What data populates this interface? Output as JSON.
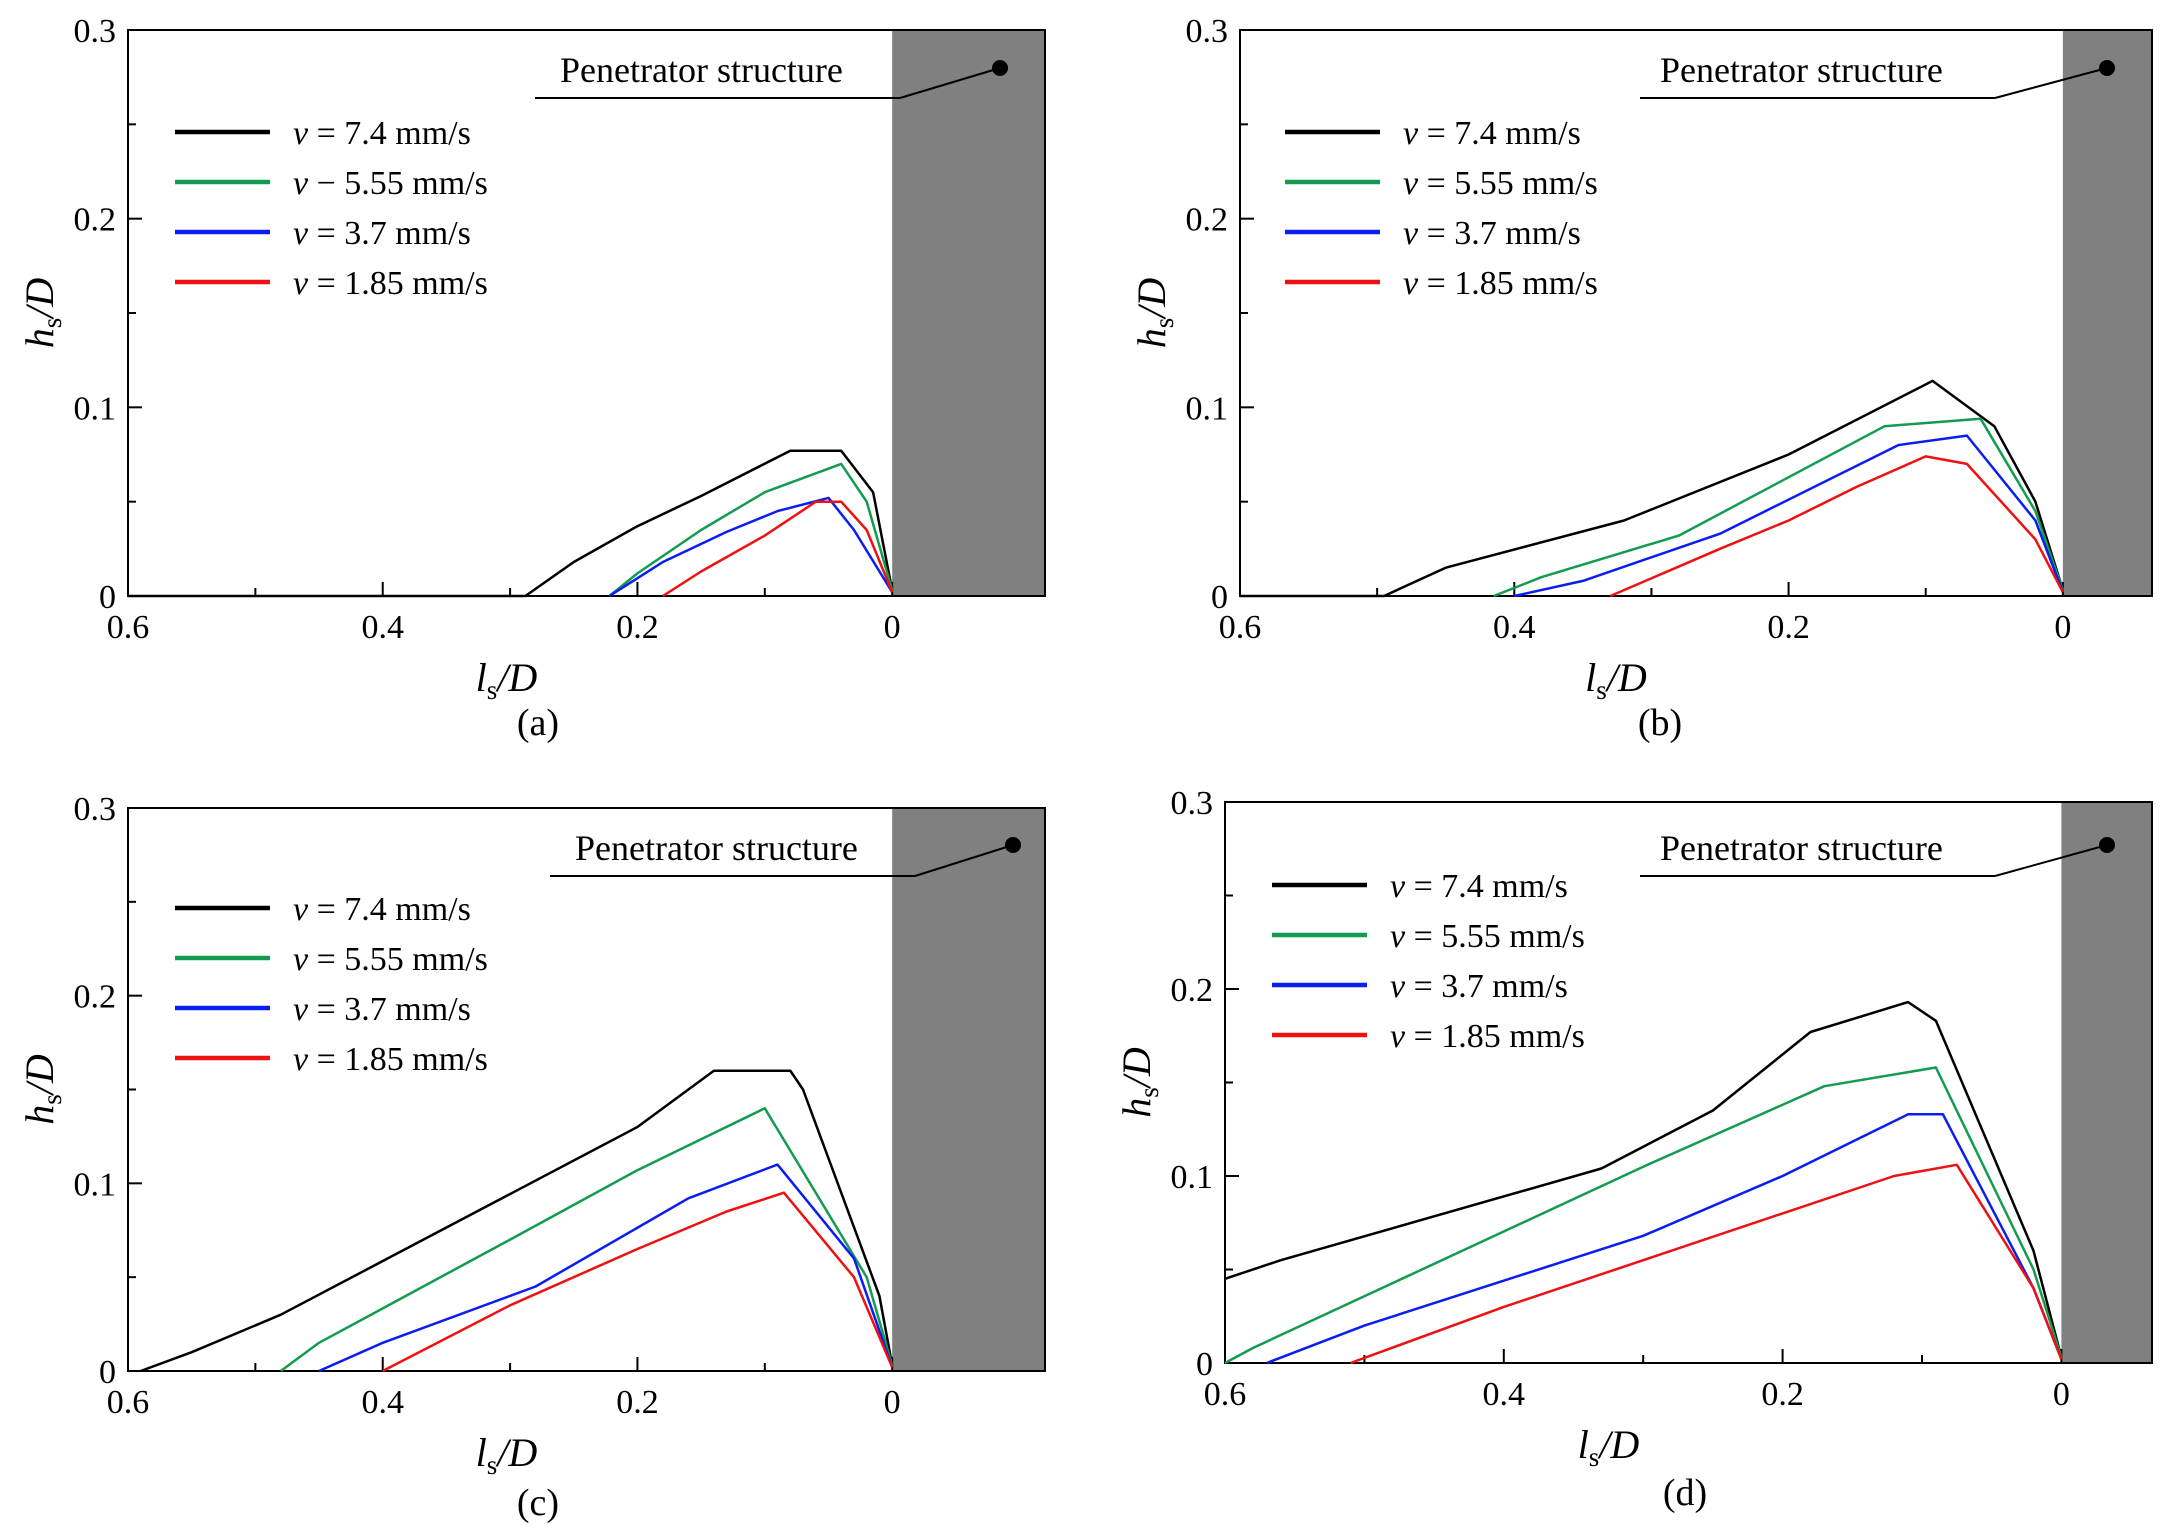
{
  "figure": {
    "penetrator_label": "Penetrator structure",
    "x_axis": {
      "main": "l",
      "sub": "s",
      "suffix": "/D"
    },
    "y_axis": {
      "main": "h",
      "sub": "s",
      "suffix": "/D"
    },
    "colors": {
      "v7_4": "#000000",
      "v5_55": "#139b4f",
      "v3_7": "#0a1ef0",
      "v1_85": "#ee1111",
      "structure": "#808080"
    }
  },
  "chart_data": [
    {
      "panel": "(a)",
      "type": "line",
      "xlabel": "ls/D",
      "ylabel": "hs/D",
      "xlim": [
        0.6,
        -0.12
      ],
      "ylim": [
        0,
        0.3
      ],
      "xticks": [
        "0.6",
        "0.4",
        "0.2",
        "0"
      ],
      "yticks": [
        "0",
        "0.1",
        "0.2",
        "0.3"
      ],
      "series": [
        {
          "name": "v = 7.4 mm/s",
          "legend_sym": "v",
          "legend_rest": " = 7.4 mm/s",
          "color": "#000000",
          "x": [
            0.6,
            0.288,
            0.25,
            0.2,
            0.15,
            0.08,
            0.04,
            0.015,
            0.0
          ],
          "y": [
            0,
            0,
            0.018,
            0.037,
            0.053,
            0.077,
            0.077,
            0.055,
            0.003
          ]
        },
        {
          "name": "v − 5.55 mm/s",
          "legend_sym": "v",
          "legend_rest": " − 5.55 mm/s",
          "color": "#139b4f",
          "x": [
            0.222,
            0.2,
            0.15,
            0.1,
            0.04,
            0.02,
            0.0
          ],
          "y": [
            0,
            0.012,
            0.035,
            0.055,
            0.07,
            0.05,
            0.003
          ]
        },
        {
          "name": "v = 3.7 mm/s",
          "legend_sym": "v",
          "legend_rest": " = 3.7 mm/s",
          "color": "#0a1ef0",
          "x": [
            0.222,
            0.18,
            0.13,
            0.09,
            0.05,
            0.03,
            0.0
          ],
          "y": [
            0,
            0.018,
            0.034,
            0.045,
            0.052,
            0.035,
            0.002
          ]
        },
        {
          "name": "v = 1.85 mm/s",
          "legend_sym": "v",
          "legend_rest": " = 1.85 mm/s",
          "color": "#ee1111",
          "x": [
            0.18,
            0.15,
            0.1,
            0.06,
            0.04,
            0.02,
            0.0
          ],
          "y": [
            0,
            0.013,
            0.032,
            0.05,
            0.05,
            0.035,
            0.002
          ]
        }
      ]
    },
    {
      "panel": "(b)",
      "type": "line",
      "xlabel": "ls/D",
      "ylabel": "hs/D",
      "xlim": [
        0.6,
        -0.065
      ],
      "ylim": [
        0,
        0.3
      ],
      "xticks": [
        "0.6",
        "0.4",
        "0.2",
        "0"
      ],
      "yticks": [
        "0",
        "0.1",
        "0.2",
        "0.3"
      ],
      "series": [
        {
          "name": "v = 7.4 mm/s",
          "legend_sym": "v",
          "legend_rest": " = 7.4 mm/s",
          "color": "#000000",
          "x": [
            0.6,
            0.495,
            0.45,
            0.32,
            0.2,
            0.095,
            0.05,
            0.02,
            0.0
          ],
          "y": [
            0,
            0,
            0.015,
            0.04,
            0.075,
            0.114,
            0.09,
            0.05,
            0.003
          ]
        },
        {
          "name": "v = 5.55 mm/s",
          "legend_sym": "v",
          "legend_rest": " = 5.55 mm/s",
          "color": "#139b4f",
          "x": [
            0.415,
            0.38,
            0.28,
            0.13,
            0.06,
            0.02,
            0.0
          ],
          "y": [
            0,
            0.01,
            0.032,
            0.09,
            0.094,
            0.045,
            0.003
          ]
        },
        {
          "name": "v = 3.7 mm/s",
          "legend_sym": "v",
          "legend_rest": " = 3.7 mm/s",
          "color": "#0a1ef0",
          "x": [
            0.4,
            0.35,
            0.25,
            0.12,
            0.07,
            0.02,
            0.0
          ],
          "y": [
            0,
            0.008,
            0.033,
            0.08,
            0.085,
            0.04,
            0.002
          ]
        },
        {
          "name": "v = 1.85 mm/s",
          "legend_sym": "v",
          "legend_rest": " = 1.85 mm/s",
          "color": "#ee1111",
          "x": [
            0.33,
            0.25,
            0.2,
            0.15,
            0.1,
            0.07,
            0.02,
            0.0
          ],
          "y": [
            0,
            0.025,
            0.04,
            0.058,
            0.074,
            0.07,
            0.03,
            0.002
          ]
        }
      ]
    },
    {
      "panel": "(c)",
      "type": "line",
      "xlabel": "ls/D",
      "ylabel": "hs/D",
      "xlim": [
        0.6,
        -0.12
      ],
      "ylim": [
        0,
        0.3
      ],
      "xticks": [
        "0.6",
        "0.4",
        "0.2",
        "0"
      ],
      "yticks": [
        "0",
        "0.1",
        "0.2",
        "0.3"
      ],
      "series": [
        {
          "name": "v = 7.4 mm/s",
          "legend_sym": "v",
          "legend_rest": " = 7.4 mm/s",
          "color": "#000000",
          "x": [
            0.59,
            0.55,
            0.48,
            0.2,
            0.14,
            0.08,
            0.07,
            0.01,
            0.0
          ],
          "y": [
            0,
            0.01,
            0.03,
            0.13,
            0.16,
            0.16,
            0.15,
            0.04,
            0.003
          ]
        },
        {
          "name": "v = 5.55 mm/s",
          "legend_sym": "v",
          "legend_rest": " = 5.55 mm/s",
          "color": "#139b4f",
          "x": [
            0.48,
            0.45,
            0.3,
            0.2,
            0.1,
            0.02,
            0.0
          ],
          "y": [
            0,
            0.015,
            0.07,
            0.107,
            0.14,
            0.05,
            0.003
          ]
        },
        {
          "name": "v = 3.7 mm/s",
          "legend_sym": "v",
          "legend_rest": " = 3.7 mm/s",
          "color": "#0a1ef0",
          "x": [
            0.45,
            0.4,
            0.28,
            0.16,
            0.09,
            0.03,
            0.0
          ],
          "y": [
            0,
            0.015,
            0.045,
            0.092,
            0.11,
            0.06,
            0.002
          ]
        },
        {
          "name": "v = 1.85 mm/s",
          "legend_sym": "v",
          "legend_rest": " = 1.85 mm/s",
          "color": "#ee1111",
          "x": [
            0.4,
            0.3,
            0.2,
            0.13,
            0.085,
            0.03,
            0.0
          ],
          "y": [
            0,
            0.035,
            0.065,
            0.085,
            0.095,
            0.05,
            0.002
          ]
        }
      ]
    },
    {
      "panel": "(d)",
      "type": "line",
      "xlabel": "ls/D",
      "ylabel": "hs/D",
      "xlim": [
        0.6,
        -0.065
      ],
      "ylim": [
        0,
        0.3
      ],
      "xticks": [
        "0.6",
        "0.4",
        "0.2",
        "0"
      ],
      "yticks": [
        "0",
        "0.1",
        "0.2",
        "0.3"
      ],
      "series": [
        {
          "name": "v = 7.4 mm/s",
          "legend_sym": "v",
          "legend_rest": " = 7.4 mm/s",
          "color": "#000000",
          "x": [
            0.6,
            0.56,
            0.33,
            0.25,
            0.18,
            0.11,
            0.09,
            0.02,
            0.0
          ],
          "y": [
            0.045,
            0.055,
            0.104,
            0.135,
            0.177,
            0.193,
            0.183,
            0.06,
            0.003
          ]
        },
        {
          "name": "v = 5.55 mm/s",
          "legend_sym": "v",
          "legend_rest": " = 5.55 mm/s",
          "color": "#139b4f",
          "x": [
            0.6,
            0.58,
            0.3,
            0.17,
            0.09,
            0.02,
            0.0
          ],
          "y": [
            0,
            0.008,
            0.105,
            0.148,
            0.158,
            0.05,
            0.003
          ]
        },
        {
          "name": "v = 3.7 mm/s",
          "legend_sym": "v",
          "legend_rest": " = 3.7 mm/s",
          "color": "#0a1ef0",
          "x": [
            0.57,
            0.5,
            0.3,
            0.2,
            0.11,
            0.085,
            0.02,
            0.0
          ],
          "y": [
            0,
            0.02,
            0.068,
            0.1,
            0.133,
            0.133,
            0.04,
            0.002
          ]
        },
        {
          "name": "v = 1.85 mm/s",
          "legend_sym": "v",
          "legend_rest": " = 1.85 mm/s",
          "color": "#ee1111",
          "x": [
            0.51,
            0.4,
            0.3,
            0.2,
            0.12,
            0.075,
            0.02,
            0.0
          ],
          "y": [
            0,
            0.03,
            0.055,
            0.08,
            0.1,
            0.106,
            0.04,
            0.002
          ]
        }
      ]
    }
  ]
}
